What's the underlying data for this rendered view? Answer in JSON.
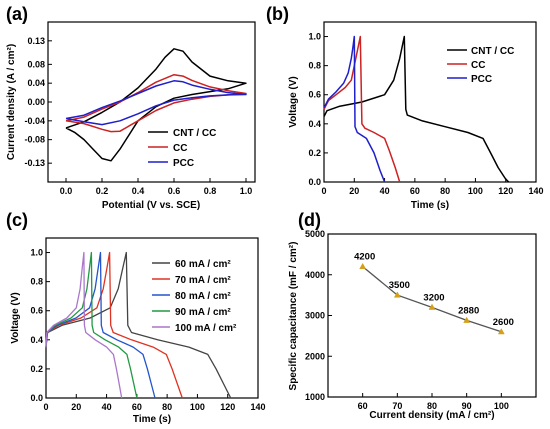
{
  "chart_data": [
    {
      "panel": "(a)",
      "type": "line",
      "xlabel": "Potential (V vs. SCE)",
      "ylabel": "Current density (A / cm²)",
      "xlim": [
        -0.1,
        1.05
      ],
      "ylim": [
        -0.17,
        0.17
      ],
      "xticks": [
        "0.0",
        "0.2",
        "0.4",
        "0.6",
        "0.8",
        "1.0"
      ],
      "yticks": [
        "-0.13",
        "-0.08",
        "-0.04",
        "0.00",
        "0.04",
        "0.08",
        "0.13"
      ],
      "legend": "bottom-right",
      "series": [
        {
          "name": "CNT / CC",
          "color": "#000000",
          "forward": [
            [
              0,
              -0.055
            ],
            [
              0.1,
              -0.042
            ],
            [
              0.2,
              -0.022
            ],
            [
              0.3,
              0.0
            ],
            [
              0.4,
              0.03
            ],
            [
              0.5,
              0.07
            ],
            [
              0.55,
              0.095
            ],
            [
              0.6,
              0.113
            ],
            [
              0.65,
              0.108
            ],
            [
              0.7,
              0.085
            ],
            [
              0.8,
              0.055
            ],
            [
              0.9,
              0.045
            ],
            [
              1.0,
              0.04
            ]
          ],
          "reverse": [
            [
              1.0,
              0.04
            ],
            [
              0.9,
              0.028
            ],
            [
              0.8,
              0.022
            ],
            [
              0.7,
              0.016
            ],
            [
              0.6,
              0.008
            ],
            [
              0.5,
              -0.01
            ],
            [
              0.4,
              -0.04
            ],
            [
              0.3,
              -0.1
            ],
            [
              0.25,
              -0.125
            ],
            [
              0.2,
              -0.12
            ],
            [
              0.15,
              -0.1
            ],
            [
              0.1,
              -0.08
            ],
            [
              0.05,
              -0.065
            ],
            [
              0,
              -0.055
            ]
          ]
        },
        {
          "name": "CC",
          "color": "#cc2222",
          "forward": [
            [
              0,
              -0.04
            ],
            [
              0.1,
              -0.032
            ],
            [
              0.2,
              -0.015
            ],
            [
              0.3,
              0.0
            ],
            [
              0.4,
              0.02
            ],
            [
              0.5,
              0.042
            ],
            [
              0.6,
              0.058
            ],
            [
              0.65,
              0.055
            ],
            [
              0.7,
              0.046
            ],
            [
              0.8,
              0.032
            ],
            [
              0.9,
              0.024
            ],
            [
              1.0,
              0.018
            ]
          ],
          "reverse": [
            [
              1.0,
              0.018
            ],
            [
              0.9,
              0.015
            ],
            [
              0.8,
              0.012
            ],
            [
              0.7,
              0.006
            ],
            [
              0.6,
              -0.002
            ],
            [
              0.5,
              -0.018
            ],
            [
              0.4,
              -0.04
            ],
            [
              0.3,
              -0.062
            ],
            [
              0.25,
              -0.063
            ],
            [
              0.2,
              -0.058
            ],
            [
              0.1,
              -0.046
            ],
            [
              0,
              -0.04
            ]
          ]
        },
        {
          "name": "PCC",
          "color": "#1f1fcc",
          "forward": [
            [
              0,
              -0.035
            ],
            [
              0.1,
              -0.028
            ],
            [
              0.2,
              -0.012
            ],
            [
              0.3,
              0.002
            ],
            [
              0.4,
              0.018
            ],
            [
              0.5,
              0.034
            ],
            [
              0.6,
              0.045
            ],
            [
              0.65,
              0.043
            ],
            [
              0.7,
              0.036
            ],
            [
              0.8,
              0.027
            ],
            [
              0.9,
              0.02
            ],
            [
              1.0,
              0.016
            ]
          ],
          "reverse": [
            [
              1.0,
              0.016
            ],
            [
              0.9,
              0.015
            ],
            [
              0.8,
              0.013
            ],
            [
              0.7,
              0.009
            ],
            [
              0.6,
              0.004
            ],
            [
              0.5,
              -0.008
            ],
            [
              0.4,
              -0.025
            ],
            [
              0.3,
              -0.04
            ],
            [
              0.2,
              -0.048
            ],
            [
              0.1,
              -0.042
            ],
            [
              0,
              -0.035
            ]
          ]
        }
      ]
    },
    {
      "panel": "(b)",
      "type": "line",
      "xlabel": "Time (s)",
      "ylabel": "Voltage (V)",
      "xlim": [
        0,
        140
      ],
      "ylim": [
        0,
        1.1
      ],
      "xticks": [
        "0",
        "20",
        "40",
        "60",
        "80",
        "100",
        "120",
        "140"
      ],
      "yticks": [
        "0.0",
        "0.2",
        "0.4",
        "0.6",
        "0.8",
        "1.0"
      ],
      "legend": "top-right",
      "series": [
        {
          "name": "CNT / CC",
          "color": "#000000",
          "points": [
            [
              0,
              0.45
            ],
            [
              2,
              0.49
            ],
            [
              10,
              0.52
            ],
            [
              25,
              0.55
            ],
            [
              40,
              0.6
            ],
            [
              46,
              0.7
            ],
            [
              50,
              0.85
            ],
            [
              53,
              1.0
            ],
            [
              54,
              0.5
            ],
            [
              55,
              0.46
            ],
            [
              65,
              0.42
            ],
            [
              80,
              0.38
            ],
            [
              95,
              0.34
            ],
            [
              105,
              0.3
            ],
            [
              110,
              0.2
            ],
            [
              115,
              0.1
            ],
            [
              120,
              0.02
            ],
            [
              122,
              0.0
            ]
          ]
        },
        {
          "name": "CC",
          "color": "#cc2222",
          "points": [
            [
              0,
              0.5
            ],
            [
              3,
              0.56
            ],
            [
              8,
              0.6
            ],
            [
              14,
              0.65
            ],
            [
              18,
              0.7
            ],
            [
              20,
              0.8
            ],
            [
              22,
              0.9
            ],
            [
              24,
              1.0
            ],
            [
              25,
              0.4
            ],
            [
              27,
              0.37
            ],
            [
              33,
              0.34
            ],
            [
              40,
              0.3
            ],
            [
              43,
              0.22
            ],
            [
              47,
              0.1
            ],
            [
              50,
              0.0
            ]
          ]
        },
        {
          "name": "PCC",
          "color": "#1f1fcc",
          "points": [
            [
              0,
              0.51
            ],
            [
              3,
              0.57
            ],
            [
              8,
              0.62
            ],
            [
              13,
              0.68
            ],
            [
              16,
              0.75
            ],
            [
              18,
              0.85
            ],
            [
              19,
              0.92
            ],
            [
              20,
              1.0
            ],
            [
              20.5,
              0.38
            ],
            [
              22,
              0.34
            ],
            [
              28,
              0.3
            ],
            [
              33,
              0.2
            ],
            [
              37,
              0.08
            ],
            [
              40,
              0.0
            ]
          ]
        }
      ]
    },
    {
      "panel": "(c)",
      "type": "line",
      "xlabel": "Time (s)",
      "ylabel": "Voltage (V)",
      "xlim": [
        0,
        140
      ],
      "ylim": [
        0,
        1.1
      ],
      "xticks": [
        "0",
        "20",
        "40",
        "60",
        "80",
        "100",
        "120",
        "140"
      ],
      "yticks": [
        "0.0",
        "0.2",
        "0.4",
        "0.6",
        "0.8",
        "1.0"
      ],
      "legend": "top-right",
      "series": [
        {
          "name": "60 mA / cm²",
          "color": "#444444",
          "t_charge": 53,
          "t_end": 122
        },
        {
          "name": "70 mA / cm²",
          "color": "#dd3322",
          "t_charge": 42,
          "t_end": 90
        },
        {
          "name": "80 mA / cm²",
          "color": "#2255cc",
          "t_charge": 36,
          "t_end": 72
        },
        {
          "name": "90 mA / cm²",
          "color": "#229944",
          "t_charge": 30,
          "t_end": 60
        },
        {
          "name": "100 mA / cm²",
          "color": "#aa77cc",
          "t_charge": 25,
          "t_end": 50
        }
      ]
    },
    {
      "panel": "(d)",
      "type": "line",
      "xlabel": "Current density (mA / cm²)",
      "ylabel": "Specific capacitance (mF / cm²)",
      "xlim": [
        50,
        110
      ],
      "ylim": [
        1000,
        5000
      ],
      "xticks": [
        "60",
        "70",
        "80",
        "90",
        "100"
      ],
      "yticks": [
        "1000",
        "2000",
        "3000",
        "4000",
        "5000"
      ],
      "color_line": "#555555",
      "color_marker": "#d4a017",
      "x": [
        60,
        70,
        80,
        90,
        100
      ],
      "values": [
        4200,
        3500,
        3200,
        2880,
        2600
      ],
      "data_labels": [
        "4200",
        "3500",
        "3200",
        "2880",
        "2600"
      ]
    }
  ]
}
